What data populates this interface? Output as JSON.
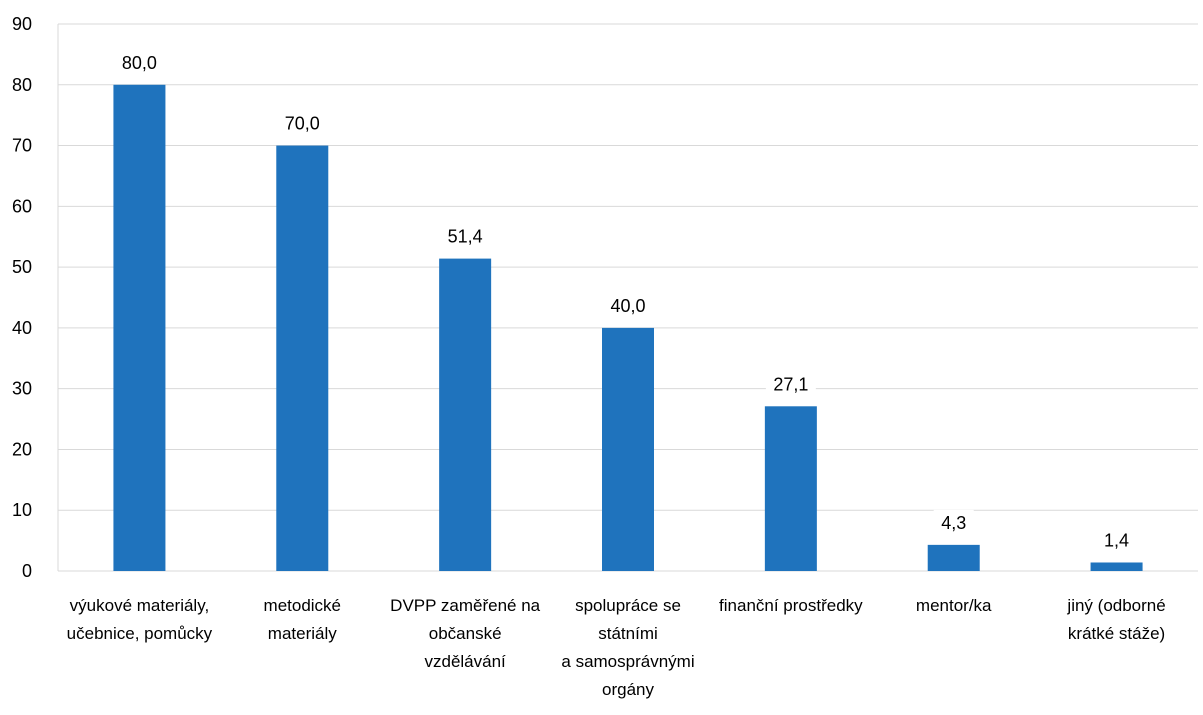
{
  "chart_data": {
    "type": "bar",
    "categories": [
      [
        "výukové materiály,",
        "učebnice, pomůcky"
      ],
      [
        "metodické",
        "materiály"
      ],
      [
        "DVPP zaměřené na",
        "občanské",
        "vzdělávání"
      ],
      [
        "spolupráce se",
        "státními",
        "a samosprávnými",
        "orgány"
      ],
      [
        "finanční prostředky"
      ],
      [
        "mentor/ka"
      ],
      [
        "jiný (odborné",
        "krátké stáže)"
      ]
    ],
    "values": [
      80.0,
      70.0,
      51.4,
      40.0,
      27.1,
      4.3,
      1.4
    ],
    "value_labels": [
      "80,0",
      "70,0",
      "51,4",
      "40,0",
      "27,1",
      "4,3",
      "1,4"
    ],
    "ylim": [
      0,
      90
    ],
    "yticks": [
      "0",
      "10",
      "20",
      "30",
      "40",
      "50",
      "60",
      "70",
      "80",
      "90"
    ],
    "grid": true,
    "colors": {
      "bar": "#1f73bd",
      "grid": "#d9d9d9"
    }
  }
}
